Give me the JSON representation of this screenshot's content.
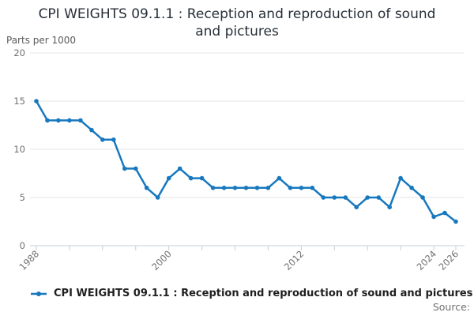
{
  "header": {
    "title": "CPI WEIGHTS 09.1.1 : Reception and reproduction of sound and pictures"
  },
  "legend": {
    "label": "CPI WEIGHTS 09.1.1 : Reception and reproduction of sound and pictures"
  },
  "footer": {
    "source_label": "Source:"
  },
  "chart_data": {
    "type": "line",
    "title": "CPI WEIGHTS 09.1.1 : Reception and reproduction of sound and pictures",
    "ylabel": "Parts per 1000",
    "xlabel": "",
    "x": [
      1988,
      1989,
      1990,
      1991,
      1992,
      1993,
      1994,
      1995,
      1996,
      1997,
      1998,
      1999,
      2000,
      2001,
      2002,
      2003,
      2004,
      2005,
      2006,
      2007,
      2008,
      2009,
      2010,
      2011,
      2012,
      2013,
      2014,
      2015,
      2016,
      2017,
      2018,
      2019,
      2020,
      2021,
      2022,
      2023,
      2024,
      2025,
      2026
    ],
    "series": [
      {
        "name": "CPI WEIGHTS 09.1.1 : Reception and reproduction of sound and pictures",
        "values": [
          15,
          13,
          13,
          13,
          13,
          12,
          11,
          11,
          8,
          8,
          6,
          5,
          7,
          8,
          7,
          7,
          6,
          6,
          6,
          6,
          6,
          6,
          7,
          6,
          6,
          6,
          5,
          5,
          5,
          4,
          5,
          5,
          4,
          7,
          6,
          5,
          3,
          3.4,
          2.5
        ]
      }
    ],
    "ylim": [
      0,
      20
    ],
    "yticks": [
      0,
      5,
      10,
      15,
      20
    ],
    "xticks": [
      1988,
      1991,
      1994,
      1997,
      2000,
      2003,
      2006,
      2009,
      2012,
      2015,
      2018,
      2021,
      2024,
      2026
    ],
    "xtick_labels_shown": [
      1988,
      2000,
      2012,
      2024,
      2026
    ],
    "grid": true,
    "legend_position": "bottom-left",
    "marker": "circle",
    "colors": {
      "line": "#1878be",
      "grid": "#e6e6e6",
      "axis": "#c5cedd",
      "tick_label": "#707070"
    }
  }
}
